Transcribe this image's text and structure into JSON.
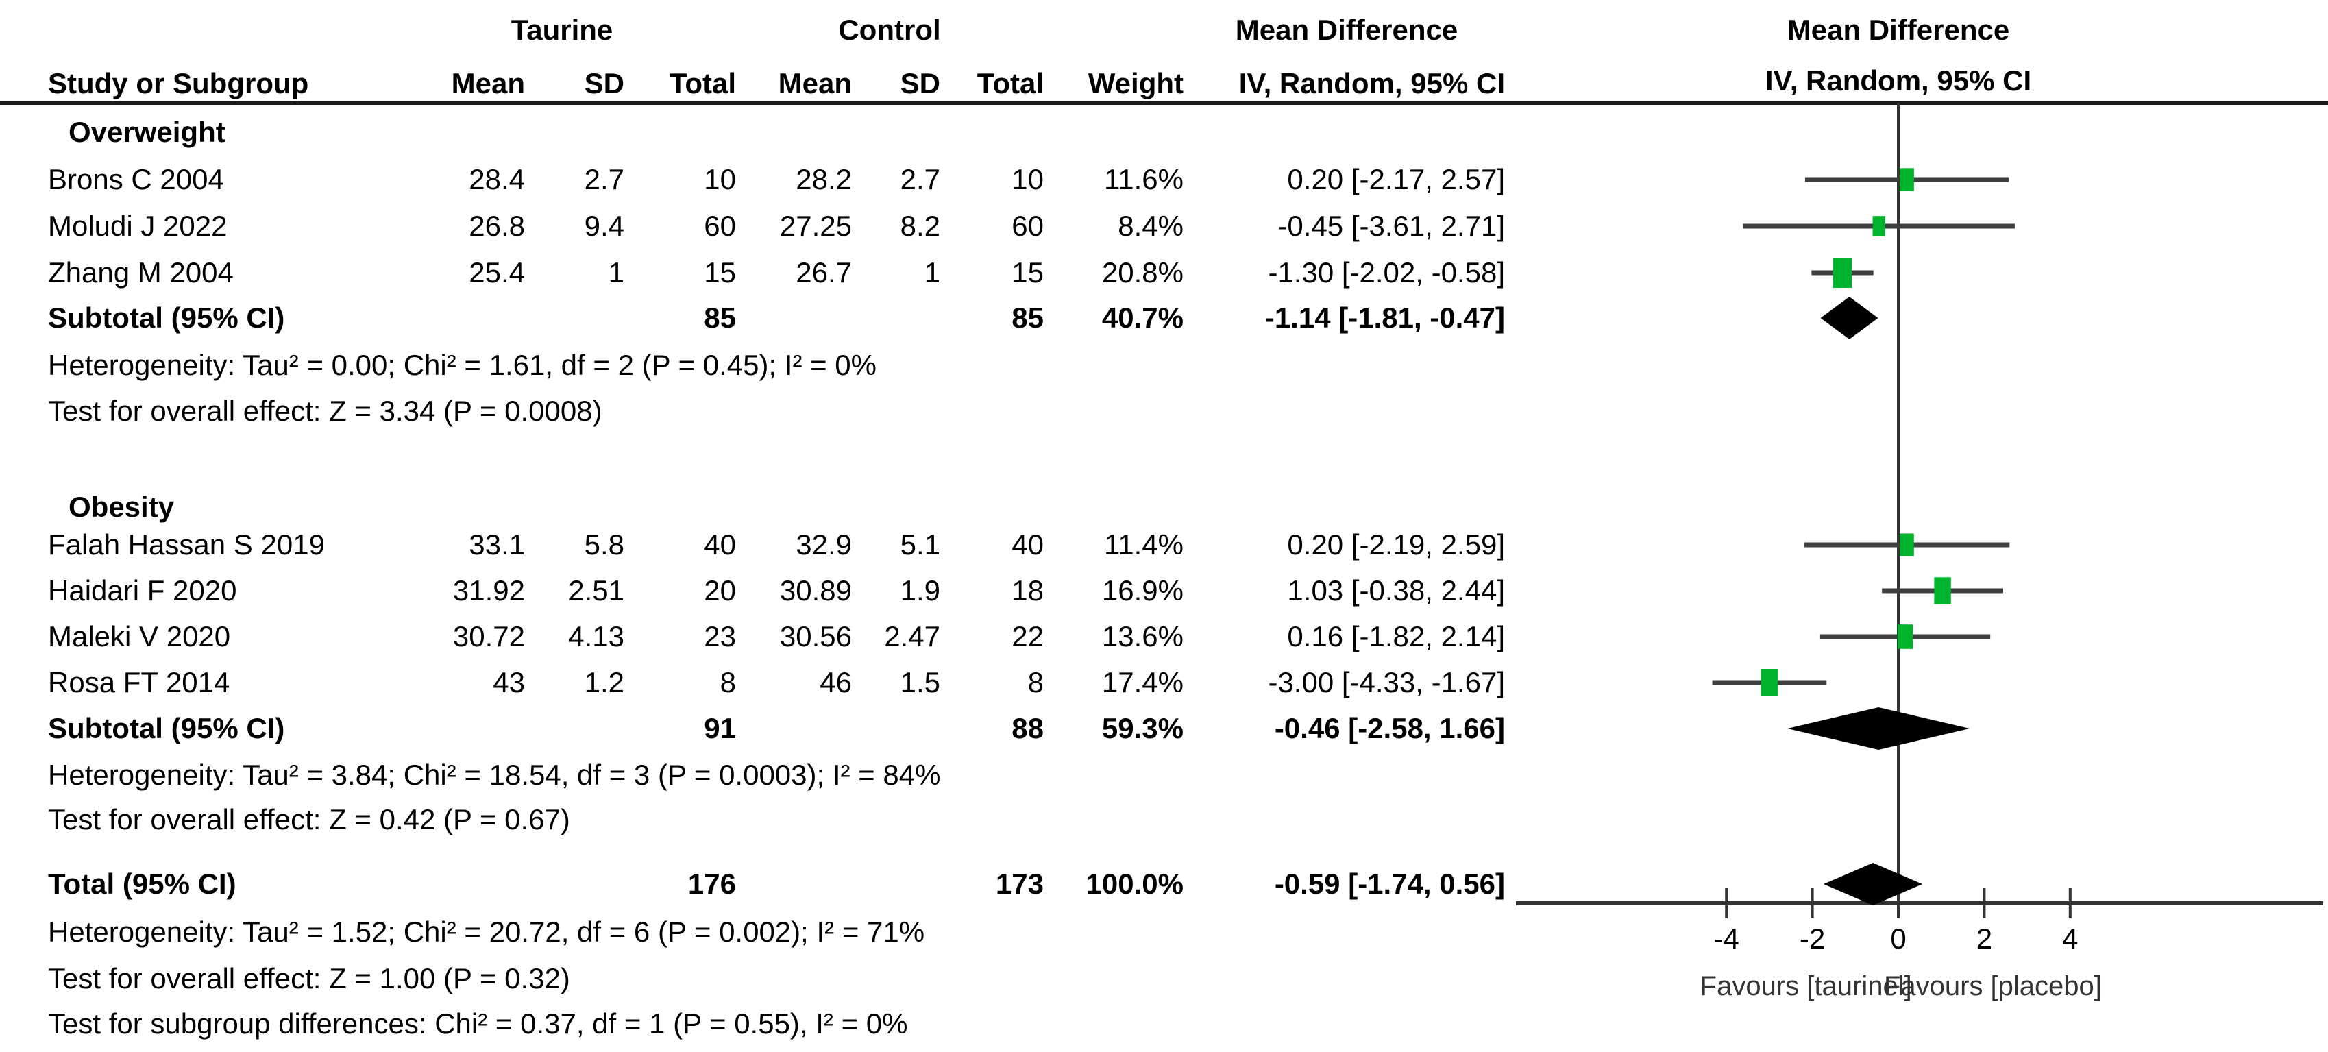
{
  "colors": {
    "marker_green": "#00b32c",
    "ci_line": "#3f3f3f",
    "diamond": "#000000",
    "axis": "#333333",
    "text": "#000000"
  },
  "header": {
    "study_col": "Study or Subgroup",
    "group1": "Taurine",
    "group2": "Control",
    "mean": "Mean",
    "sd": "SD",
    "total": "Total",
    "weight": "Weight",
    "md_title": "Mean Difference",
    "md_sub": "IV, Random, 95% CI",
    "plot_title": "Mean Difference",
    "plot_sub": "IV, Random, 95% CI"
  },
  "sections": [
    {
      "name": "Overweight",
      "studies": [
        {
          "label": "Brons C 2004",
          "mean1": "28.4",
          "sd1": "2.7",
          "total1": "10",
          "mean2": "28.2",
          "sd2": "2.7",
          "total2": "10",
          "weight": "11.6%",
          "ci": "0.20 [-2.17, 2.57]"
        },
        {
          "label": "Moludi J 2022",
          "mean1": "26.8",
          "sd1": "9.4",
          "total1": "60",
          "mean2": "27.25",
          "sd2": "8.2",
          "total2": "60",
          "weight": "8.4%",
          "ci": "-0.45 [-3.61, 2.71]"
        },
        {
          "label": "Zhang M 2004",
          "mean1": "25.4",
          "sd1": "1",
          "total1": "15",
          "mean2": "26.7",
          "sd2": "1",
          "total2": "15",
          "weight": "20.8%",
          "ci": "-1.30 [-2.02, -0.58]"
        }
      ],
      "subtotal": {
        "label": "Subtotal (95% CI)",
        "total1": "85",
        "total2": "85",
        "weight": "40.7%",
        "ci": "-1.14 [-1.81, -0.47]"
      },
      "heterogeneity": "Heterogeneity: Tau² = 0.00; Chi² = 1.61, df = 2 (P = 0.45); I² = 0%",
      "overall": "Test for overall effect: Z = 3.34 (P = 0.0008)"
    },
    {
      "name": "Obesity",
      "studies": [
        {
          "label": "Falah Hassan S 2019",
          "mean1": "33.1",
          "sd1": "5.8",
          "total1": "40",
          "mean2": "32.9",
          "sd2": "5.1",
          "total2": "40",
          "weight": "11.4%",
          "ci": "0.20 [-2.19, 2.59]"
        },
        {
          "label": "Haidari F 2020",
          "mean1": "31.92",
          "sd1": "2.51",
          "total1": "20",
          "mean2": "30.89",
          "sd2": "1.9",
          "total2": "18",
          "weight": "16.9%",
          "ci": "1.03 [-0.38, 2.44]"
        },
        {
          "label": "Maleki V 2020",
          "mean1": "30.72",
          "sd1": "4.13",
          "total1": "23",
          "mean2": "30.56",
          "sd2": "2.47",
          "total2": "22",
          "weight": "13.6%",
          "ci": "0.16 [-1.82, 2.14]"
        },
        {
          "label": "Rosa FT 2014",
          "mean1": "43",
          "sd1": "1.2",
          "total1": "8",
          "mean2": "46",
          "sd2": "1.5",
          "total2": "8",
          "weight": "17.4%",
          "ci": "-3.00 [-4.33, -1.67]"
        }
      ],
      "subtotal": {
        "label": "Subtotal (95% CI)",
        "total1": "91",
        "total2": "88",
        "weight": "59.3%",
        "ci": "-0.46 [-2.58, 1.66]"
      },
      "heterogeneity": "Heterogeneity: Tau² = 3.84; Chi² = 18.54, df = 3 (P = 0.0003); I² = 84%",
      "overall": "Test for overall effect: Z = 0.42 (P = 0.67)"
    }
  ],
  "total": {
    "label": "Total (95% CI)",
    "total1": "176",
    "total2": "173",
    "weight": "100.0%",
    "ci": "-0.59 [-1.74, 0.56]",
    "heterogeneity": "Heterogeneity: Tau² = 1.52; Chi² = 20.72, df = 6 (P = 0.002); I² = 71%",
    "overall": "Test for overall effect: Z = 1.00 (P = 0.32)",
    "subgroup_diff": "Test for subgroup differences: Chi² = 0.37, df = 1 (P = 0.55), I² = 0%"
  },
  "axis": {
    "ticks": [
      "-4",
      "-2",
      "0",
      "2",
      "4"
    ],
    "favours_left": "Favours [taurinel]",
    "favours_right": "Favours [placebo]"
  },
  "chart_data": {
    "type": "forest",
    "title": "Mean Difference  IV, Random, 95% CI",
    "xlabel_left": "Favours [taurinel]",
    "xlabel_right": "Favours [placebo]",
    "x_ticks": [
      -4,
      -2,
      0,
      2,
      4
    ],
    "xlim": [
      -8.9,
      10.0
    ],
    "zero_line": 0,
    "groups": [
      {
        "name": "Overweight",
        "studies": [
          {
            "label": "Brons C 2004",
            "md": 0.2,
            "ci_low": -2.17,
            "ci_high": 2.57,
            "weight_pct": 11.6
          },
          {
            "label": "Moludi J 2022",
            "md": -0.45,
            "ci_low": -3.61,
            "ci_high": 2.71,
            "weight_pct": 8.4
          },
          {
            "label": "Zhang M 2004",
            "md": -1.3,
            "ci_low": -2.02,
            "ci_high": -0.58,
            "weight_pct": 20.8
          }
        ],
        "subtotal": {
          "md": -1.14,
          "ci_low": -1.81,
          "ci_high": -0.47,
          "weight_pct": 40.7,
          "tau2": 0.0,
          "chi2": 1.61,
          "df": 2,
          "p_het": 0.45,
          "i2_pct": 0,
          "z": 3.34,
          "p_overall": 0.0008
        }
      },
      {
        "name": "Obesity",
        "studies": [
          {
            "label": "Falah Hassan S 2019",
            "md": 0.2,
            "ci_low": -2.19,
            "ci_high": 2.59,
            "weight_pct": 11.4
          },
          {
            "label": "Haidari F 2020",
            "md": 1.03,
            "ci_low": -0.38,
            "ci_high": 2.44,
            "weight_pct": 16.9
          },
          {
            "label": "Maleki V 2020",
            "md": 0.16,
            "ci_low": -1.82,
            "ci_high": 2.14,
            "weight_pct": 13.6
          },
          {
            "label": "Rosa FT 2014",
            "md": -3.0,
            "ci_low": -4.33,
            "ci_high": -1.67,
            "weight_pct": 17.4
          }
        ],
        "subtotal": {
          "md": -0.46,
          "ci_low": -2.58,
          "ci_high": 1.66,
          "weight_pct": 59.3,
          "tau2": 3.84,
          "chi2": 18.54,
          "df": 3,
          "p_het": 0.0003,
          "i2_pct": 84,
          "z": 0.42,
          "p_overall": 0.67
        }
      }
    ],
    "total": {
      "md": -0.59,
      "ci_low": -1.74,
      "ci_high": 0.56,
      "weight_pct": 100.0,
      "tau2": 1.52,
      "chi2": 20.72,
      "df": 6,
      "p_het": 0.002,
      "i2_pct": 71,
      "z": 1.0,
      "p_overall": 0.32,
      "subgroup_diff": {
        "chi2": 0.37,
        "df": 1,
        "p": 0.55,
        "i2_pct": 0
      }
    }
  }
}
